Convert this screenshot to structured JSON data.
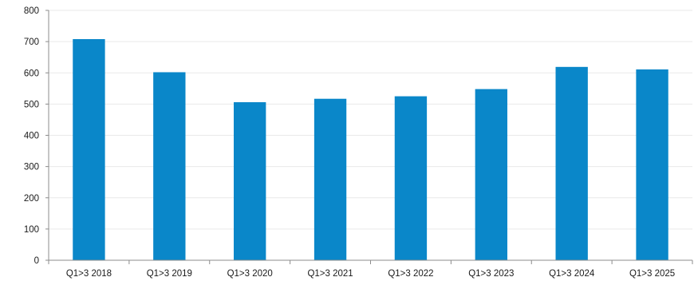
{
  "chart_data": {
    "type": "bar",
    "categories": [
      "Q1>3 2018",
      "Q1>3 2019",
      "Q1>3 2020",
      "Q1>3 2021",
      "Q1>3 2022",
      "Q1>3 2023",
      "Q1>3 2024",
      "Q1>3 2025"
    ],
    "values": [
      708,
      602,
      506,
      517,
      525,
      548,
      619,
      611
    ],
    "ylim": [
      0,
      800
    ],
    "yticks": [
      0,
      100,
      200,
      300,
      400,
      500,
      600,
      700,
      800
    ],
    "title": "",
    "xlabel": "",
    "ylabel": "",
    "grid": true,
    "legend": "none",
    "bar_color": "#0a87c9"
  }
}
